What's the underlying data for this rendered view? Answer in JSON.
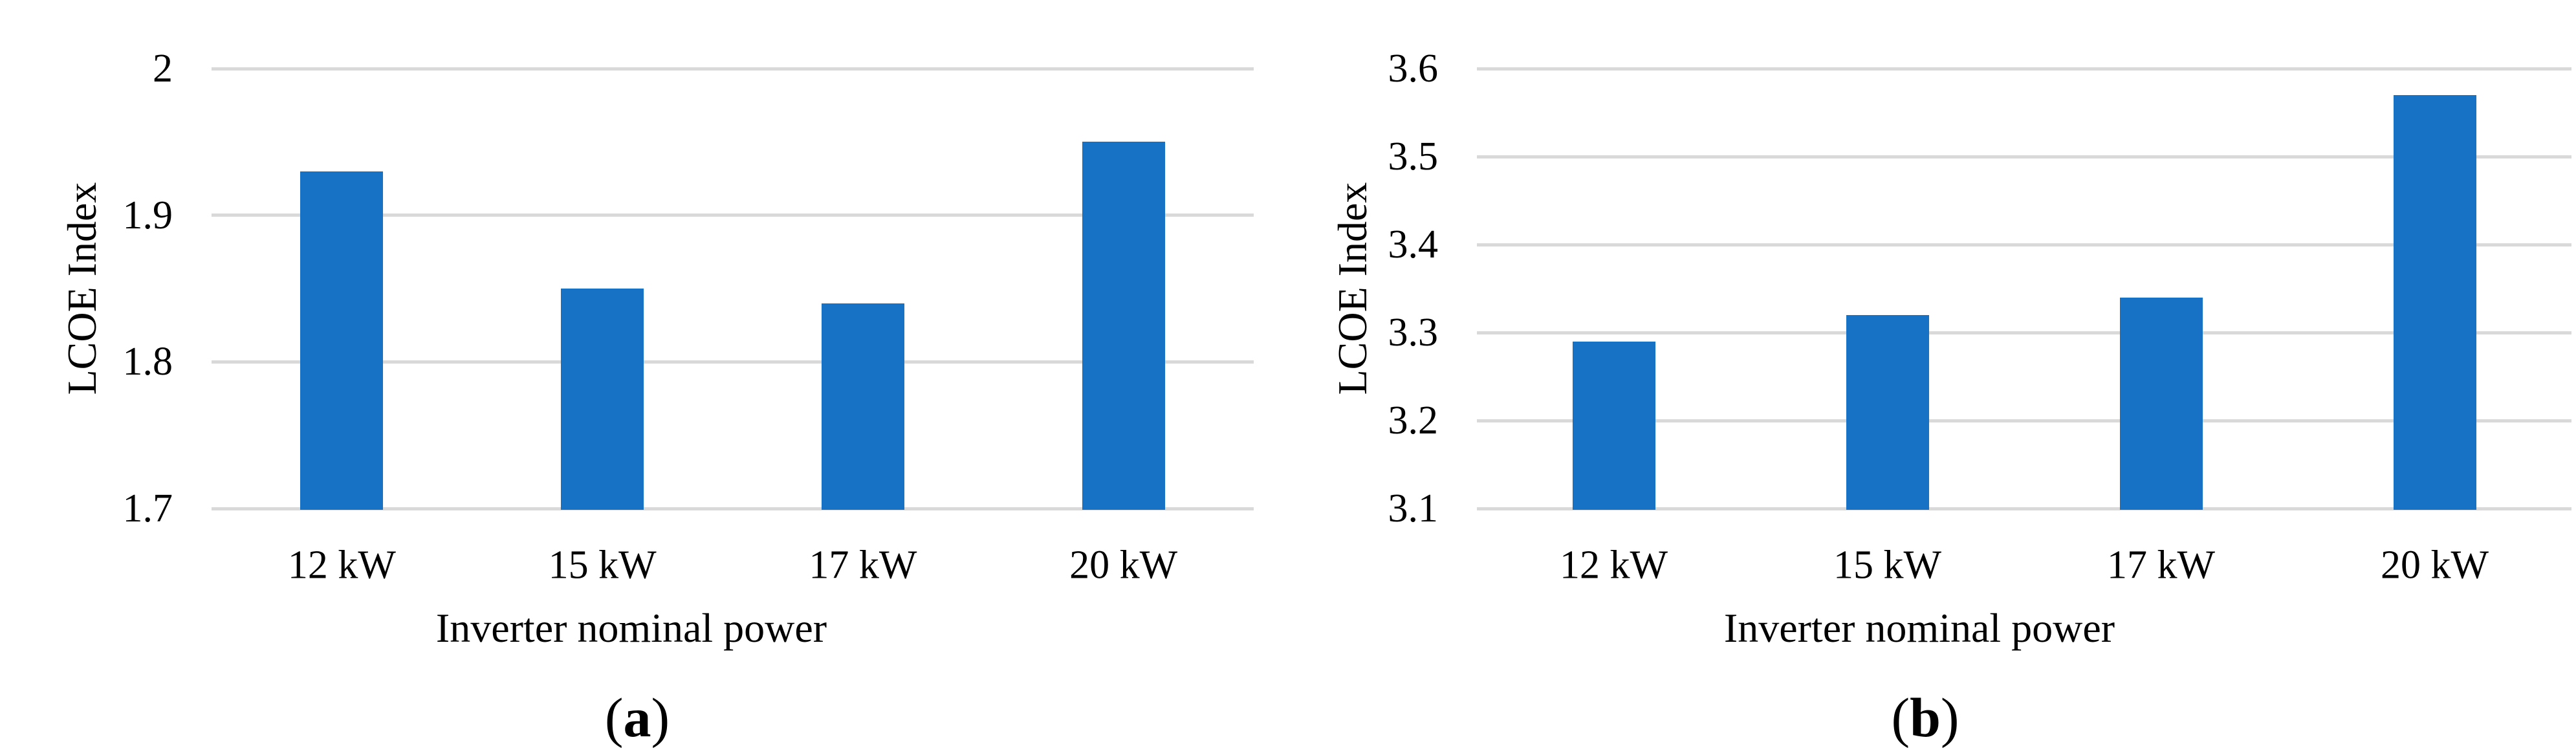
{
  "figure": {
    "background_color": "#FFFFFF",
    "text_color": "#000000"
  },
  "chart_data": [
    {
      "panel": "a",
      "type": "bar",
      "caption": {
        "open": "(",
        "letter": "a",
        "close": ")"
      },
      "xlabel": "Inverter nominal power",
      "ylabel": "LCOE Index",
      "categories": [
        "12 kW",
        "15 kW",
        "17 kW",
        "20 kW"
      ],
      "values": [
        1.93,
        1.85,
        1.84,
        1.95
      ],
      "ylim": [
        1.7,
        2.0
      ],
      "yticks": [
        2.0,
        1.9,
        1.8,
        1.7
      ],
      "ytick_labels": [
        "2",
        "1.9",
        "1.8",
        "1.7"
      ],
      "grid": "horizontal",
      "legend": false,
      "colors": {
        "bar": "#1772C6",
        "gridline": "#D9D9D9"
      }
    },
    {
      "panel": "b",
      "type": "bar",
      "caption": {
        "open": "(",
        "letter": "b",
        "close": ")"
      },
      "xlabel": "Inverter nominal power",
      "ylabel": "LCOE Index",
      "categories": [
        "12 kW",
        "15 kW",
        "17 kW",
        "20 kW"
      ],
      "values": [
        3.29,
        3.32,
        3.34,
        3.57
      ],
      "ylim": [
        3.1,
        3.6
      ],
      "yticks": [
        3.6,
        3.5,
        3.4,
        3.3,
        3.2,
        3.1
      ],
      "ytick_labels": [
        "3.6",
        "3.5",
        "3.4",
        "3.3",
        "3.2",
        "3.1"
      ],
      "grid": "horizontal",
      "legend": false,
      "colors": {
        "bar": "#1772C6",
        "gridline": "#D9D9D9"
      }
    }
  ]
}
